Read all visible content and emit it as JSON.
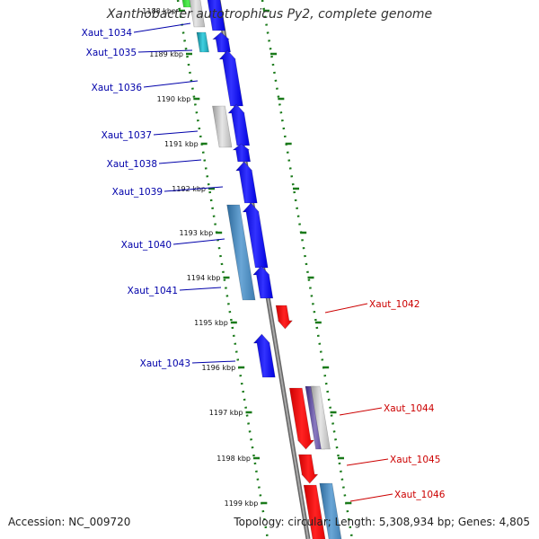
{
  "title": "Xanthobacter autotrophicus Py2, complete genome",
  "accession": "Accession: NC_009720",
  "stats": "Topology: circular; Length: 5,308,934 bp; Genes: 4,805",
  "colors": {
    "forward_gene": "#0000ee",
    "reverse_gene": "#ee0000",
    "label_left": "#0000aa",
    "label_right": "#cc0000",
    "dna_line": "#888888",
    "tick_marks": "#1a7a1a",
    "gray_feature": "#b0b0b0",
    "steel_feature": "#4a86b8",
    "purple_feature": "#5a4a9a",
    "cyan_feature": "#20b0c0",
    "green_feature": "#22bb22"
  },
  "ticks": [
    "1188 kbp",
    "1189 kbp",
    "1190 kbp",
    "1191 kbp",
    "1192 kbp",
    "1193 kbp",
    "1194 kbp",
    "1195 kbp",
    "1196 kbp",
    "1197 kbp",
    "1198 kbp",
    "1199 kbp"
  ],
  "genes_left": [
    "Xaut_1034",
    "Xaut_1035",
    "Xaut_1036",
    "Xaut_1037",
    "Xaut_1038",
    "Xaut_1039",
    "Xaut_1040",
    "Xaut_1041",
    "Xaut_1043"
  ],
  "genes_right": [
    "Xaut_1042",
    "Xaut_1044",
    "Xaut_1045",
    "Xaut_1046"
  ]
}
